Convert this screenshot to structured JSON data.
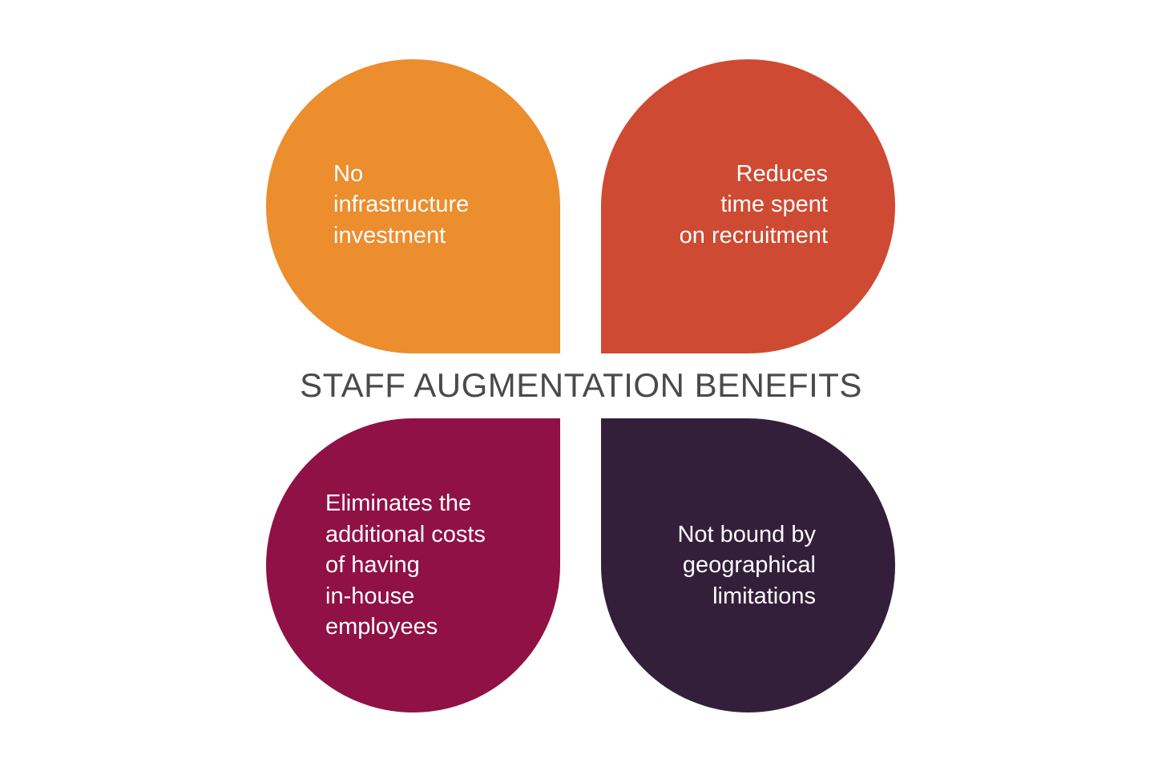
{
  "title": "STAFF AUGMENTATION BENEFITS",
  "benefits": [
    {
      "position": "top-left",
      "color": "#EC8D2E",
      "lines": [
        "No",
        "infrastructure",
        "investment"
      ]
    },
    {
      "position": "top-right",
      "color": "#CF4A32",
      "lines": [
        "Reduces",
        "time spent",
        "on recruitment"
      ]
    },
    {
      "position": "bottom-left",
      "color": "#901145",
      "lines": [
        "Eliminates the",
        "additional costs",
        "of having",
        "in-house",
        "employees"
      ]
    },
    {
      "position": "bottom-right",
      "color": "#341F3B",
      "lines": [
        "Not bound by",
        "geographical",
        "limitations"
      ]
    }
  ]
}
